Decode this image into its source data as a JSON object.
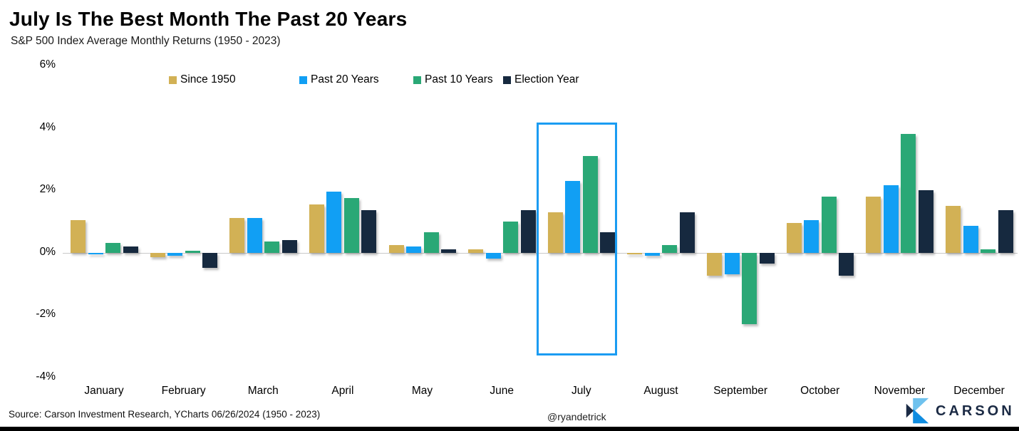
{
  "title": "July Is The Best Month The Past 20 Years",
  "subtitle": "S&P 500 Index Average Monthly Returns (1950 - 2023)",
  "footer": {
    "source": "Source: Carson Investment Research, YCharts 06/26/2024 (1950 - 2023)",
    "handle": "@ryandetrick",
    "brand": "CARSON"
  },
  "colors": {
    "highlight_border": "#1b9cf2",
    "baseline": "#c9c9c9",
    "logo_light_blue": "#6fc2ee",
    "logo_bright_blue": "#0f8ce0",
    "logo_navy": "#1b2a44"
  },
  "chart_data": {
    "type": "bar",
    "title": "July Is The Best Month The Past 20 Years",
    "subtitle": "S&P 500 Index Average Monthly Returns (1950 - 2023)",
    "categories": [
      "January",
      "February",
      "March",
      "April",
      "May",
      "June",
      "July",
      "August",
      "September",
      "October",
      "November",
      "December"
    ],
    "series": [
      {
        "name": "Since 1950",
        "color": "#d2b155",
        "values": [
          1.05,
          -0.15,
          1.1,
          1.55,
          0.25,
          0.1,
          1.3,
          -0.05,
          -0.75,
          0.95,
          1.8,
          1.5
        ]
      },
      {
        "name": "Past 20 Years",
        "color": "#119ff4",
        "values": [
          -0.05,
          -0.1,
          1.1,
          1.95,
          0.2,
          -0.2,
          2.3,
          -0.1,
          -0.7,
          1.05,
          2.15,
          0.85
        ]
      },
      {
        "name": "Past 10 Years",
        "color": "#2aa876",
        "values": [
          0.3,
          0.05,
          0.35,
          1.75,
          0.65,
          1.0,
          3.1,
          0.25,
          -2.3,
          1.8,
          3.8,
          0.1
        ]
      },
      {
        "name": "Election Year",
        "color": "#16293f",
        "values": [
          0.2,
          -0.5,
          0.4,
          1.35,
          0.1,
          1.35,
          0.65,
          1.3,
          -0.35,
          -0.75,
          2.0,
          1.35
        ]
      }
    ],
    "ylabel": "",
    "xlabel": "",
    "ylim": [
      -4,
      6
    ],
    "yticks": [
      "6%",
      "4%",
      "2%",
      "0%",
      "-2%",
      "-4%"
    ],
    "grid": false,
    "legend_position": "top",
    "highlight": {
      "month": "July"
    }
  }
}
